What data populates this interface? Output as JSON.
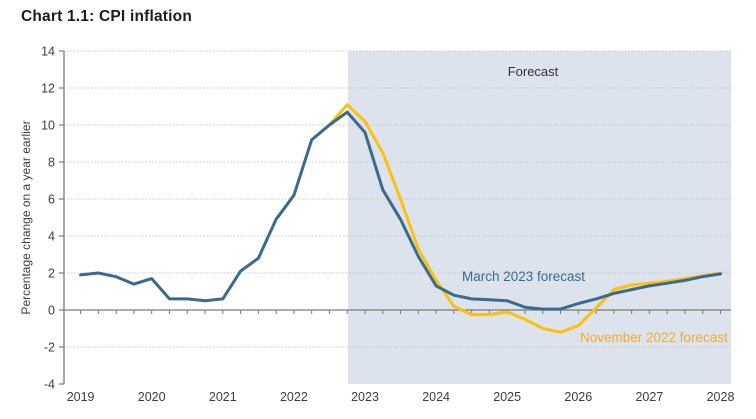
{
  "title": "Chart 1.1: CPI inflation",
  "chart_data": {
    "type": "line",
    "title": "Chart 1.1: CPI inflation",
    "xlabel": "",
    "ylabel": "Percentage change on a year earlier",
    "ylim": [
      -4,
      14
    ],
    "ytick_step": 2,
    "ytick_labels": [
      "-4",
      "-2",
      "0",
      "2",
      "4",
      "6",
      "8",
      "10",
      "12",
      "14"
    ],
    "xtick_labels": [
      "2019",
      "2020",
      "2021",
      "2022",
      "2023",
      "2024",
      "2025",
      "2026",
      "2027",
      "2028"
    ],
    "grid": "horizontal-dotted",
    "forecast_region_label": "Forecast",
    "forecast_start_x": 2022.76,
    "x_step": 0.25,
    "series": [
      {
        "name": "November 2022 forecast",
        "color": "#FDC00F",
        "label_color": "#F3AC2D",
        "x_start": 2022.5,
        "values": [
          10.0,
          11.1,
          10.2,
          8.5,
          6.0,
          3.3,
          1.6,
          0.2,
          -0.25,
          -0.25,
          -0.1,
          -0.5,
          -1.0,
          -1.2,
          -0.85,
          0.1,
          1.1,
          1.35,
          1.45,
          1.55,
          1.7,
          1.85,
          2.0
        ]
      },
      {
        "name": "March 2023 forecast",
        "color": "#3A6B8E",
        "label_color": "#3A6B8E",
        "x_start": 2019.0,
        "values": [
          1.9,
          2.0,
          1.8,
          1.4,
          1.7,
          0.6,
          0.6,
          0.5,
          0.6,
          2.1,
          2.8,
          4.9,
          6.2,
          9.2,
          10.0,
          10.7,
          9.6,
          6.5,
          4.9,
          2.9,
          1.3,
          0.8,
          0.6,
          0.55,
          0.5,
          0.15,
          0.05,
          0.05,
          0.35,
          0.6,
          0.9,
          1.1,
          1.3,
          1.45,
          1.6,
          1.8,
          1.95
        ]
      }
    ],
    "legend_position": "inline-labels"
  },
  "colors": {
    "forecast_shade": "#DCE3EC",
    "gridline": "#CCCCCC",
    "axis": "#7A7A7A",
    "tick_text": "#3D3D3D",
    "forecast_label_text": "#333333",
    "title_text": "#1B1B27",
    "background": "#FFFFFF"
  }
}
